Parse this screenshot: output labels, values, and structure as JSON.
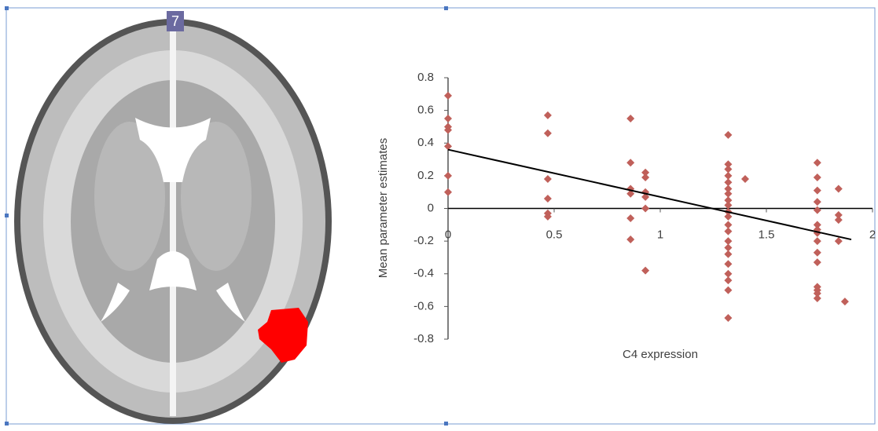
{
  "panel_label": "7",
  "chart_data": {
    "type": "scatter",
    "x_label": "C4 expression",
    "y_label": "Mean parameter  estimates",
    "xlim": [
      0,
      2
    ],
    "ylim": [
      -0.8,
      0.8
    ],
    "xticks": [
      0,
      0.5,
      1,
      1.5,
      2
    ],
    "yticks": [
      -0.8,
      -0.6,
      -0.4,
      -0.2,
      0,
      0.2,
      0.4,
      0.6,
      0.8
    ],
    "x": [
      0,
      0,
      0,
      0,
      0,
      0,
      0,
      0.47,
      0.47,
      0.47,
      0.47,
      0.47,
      0.47,
      0.86,
      0.86,
      0.86,
      0.86,
      0.86,
      0.86,
      0.93,
      0.93,
      0.93,
      0.93,
      0.93,
      0.93,
      1.32,
      1.32,
      1.32,
      1.32,
      1.32,
      1.32,
      1.32,
      1.32,
      1.32,
      1.32,
      1.32,
      1.32,
      1.32,
      1.32,
      1.32,
      1.32,
      1.32,
      1.32,
      1.32,
      1.32,
      1.32,
      1.4,
      1.74,
      1.74,
      1.74,
      1.74,
      1.74,
      1.74,
      1.74,
      1.74,
      1.74,
      1.74,
      1.74,
      1.74,
      1.74,
      1.74,
      1.74,
      1.84,
      1.84,
      1.84,
      1.84,
      1.87
    ],
    "series": [
      {
        "color": "#c0605a",
        "values": [
          0.69,
          0.55,
          0.5,
          0.48,
          0.38,
          0.2,
          0.1,
          0.57,
          0.46,
          0.18,
          0.06,
          -0.03,
          -0.05,
          0.55,
          0.28,
          0.12,
          0.09,
          -0.06,
          -0.19,
          0.22,
          0.19,
          0.1,
          0.07,
          0.0,
          -0.38,
          0.45,
          0.27,
          0.24,
          0.2,
          0.16,
          0.12,
          0.09,
          0.05,
          0.02,
          -0.02,
          -0.05,
          -0.1,
          -0.14,
          -0.2,
          -0.24,
          -0.28,
          -0.34,
          -0.4,
          -0.44,
          -0.5,
          -0.67,
          0.18,
          0.28,
          0.19,
          0.11,
          0.04,
          -0.01,
          -0.1,
          -0.13,
          -0.15,
          -0.2,
          -0.27,
          -0.33,
          -0.48,
          -0.5,
          -0.52,
          -0.55,
          0.12,
          -0.04,
          -0.07,
          -0.2,
          -0.57
        ]
      }
    ],
    "trendline": {
      "color": "#000000",
      "x": [
        0,
        1.9
      ],
      "values": [
        0.36,
        -0.19
      ]
    }
  }
}
